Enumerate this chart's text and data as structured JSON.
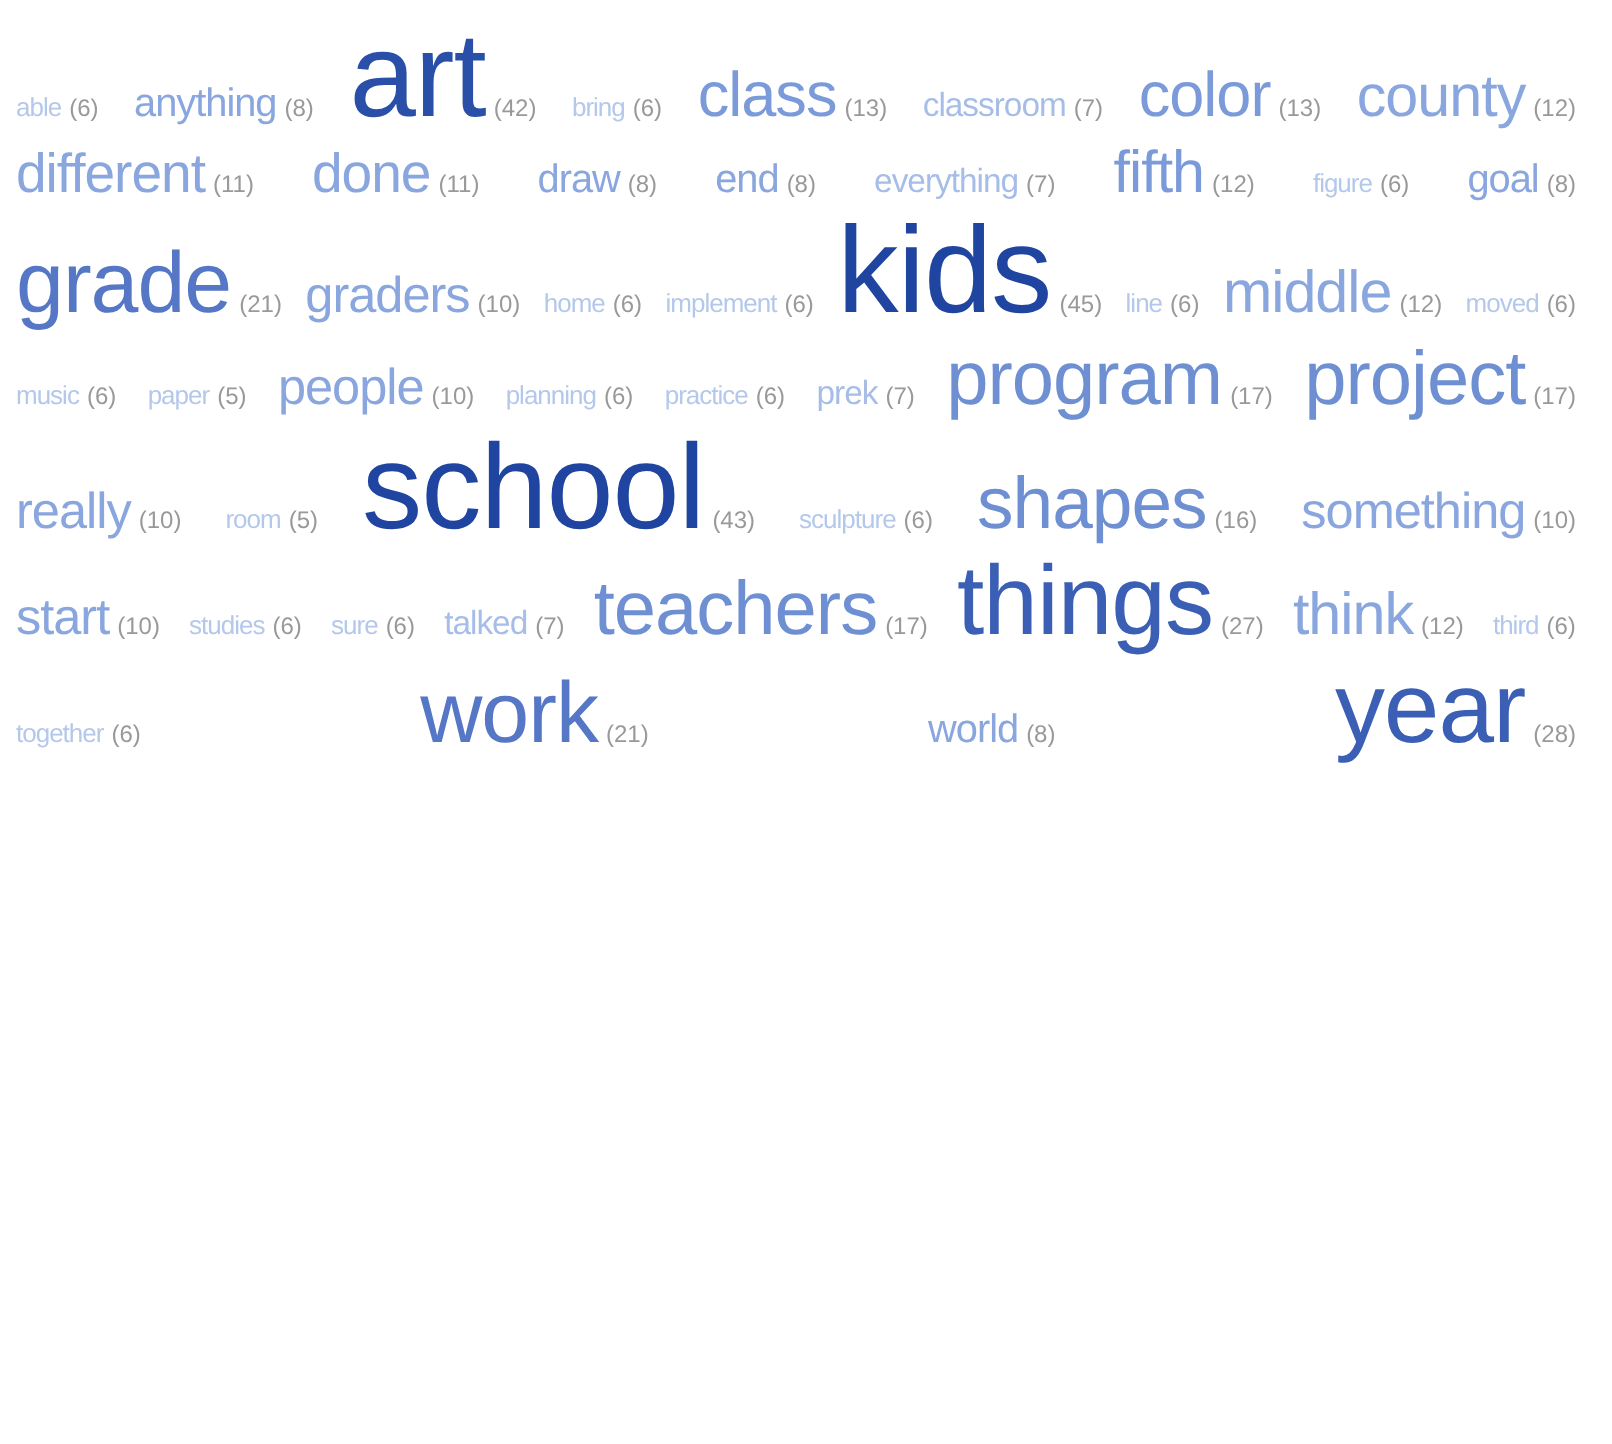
{
  "chart_data": {
    "type": "other",
    "categories": [
      "able",
      "anything",
      "art",
      "bring",
      "class",
      "classroom",
      "color",
      "county",
      "different",
      "done",
      "draw",
      "end",
      "everything",
      "fifth",
      "figure",
      "goal",
      "grade",
      "graders",
      "home",
      "implement",
      "kids",
      "line",
      "middle",
      "moved",
      "music",
      "paper",
      "people",
      "planning",
      "practice",
      "prek",
      "program",
      "project",
      "really",
      "room",
      "school",
      "sculpture",
      "shapes",
      "something",
      "start",
      "studies",
      "sure",
      "talked",
      "teachers",
      "things",
      "think",
      "third",
      "together",
      "work",
      "world",
      "year"
    ],
    "values": [
      6,
      8,
      42,
      6,
      13,
      7,
      13,
      12,
      11,
      11,
      8,
      8,
      7,
      12,
      6,
      8,
      21,
      10,
      6,
      6,
      45,
      6,
      12,
      6,
      6,
      5,
      10,
      6,
      6,
      7,
      17,
      17,
      10,
      5,
      43,
      6,
      16,
      10,
      10,
      6,
      6,
      7,
      17,
      27,
      12,
      6,
      6,
      21,
      8,
      28
    ],
    "colors": [
      "#b4c8ec",
      "#8aa6df",
      "#2a4fa8",
      "#b4c8ec",
      "#7a9ad9",
      "#a6bde8",
      "#7a9ad9",
      "#8aa6df",
      "#8aa6df",
      "#8aa6df",
      "#8aa6df",
      "#8aa6df",
      "#a6bde8",
      "#7a9ad9",
      "#b4c8ec",
      "#8aa6df",
      "#5577c6",
      "#8aa6df",
      "#b4c8ec",
      "#b4c8ec",
      "#1f45a0",
      "#b4c8ec",
      "#8aa6df",
      "#b4c8ec",
      "#b4c8ec",
      "#b4c8ec",
      "#8aa6df",
      "#b4c8ec",
      "#b4c8ec",
      "#a6bde8",
      "#6f8fd3",
      "#6f8fd3",
      "#8aa6df",
      "#b4c8ec",
      "#1f45a0",
      "#b4c8ec",
      "#6f8fd3",
      "#8aa6df",
      "#8aa6df",
      "#b4c8ec",
      "#b4c8ec",
      "#a6bde8",
      "#6f8fd3",
      "#3a5fb5",
      "#8aa6df",
      "#b4c8ec",
      "#b4c8ec",
      "#5577c6",
      "#8aa6df",
      "#3a5fb5"
    ],
    "value_labels": [
      "(6)",
      "(8)",
      "(42)",
      "(6)",
      "(13)",
      "(7)",
      "(13)",
      "(12)",
      "(11)",
      "(11)",
      "(8)",
      "(8)",
      "(7)",
      "(12)",
      "(6)",
      "(8)",
      "(21)",
      "(10)",
      "(6)",
      "(6)",
      "(45)",
      "(6)",
      "(12)",
      "(6)",
      "(6)",
      "(5)",
      "(10)",
      "(6)",
      "(6)",
      "(7)",
      "(17)",
      "(17)",
      "(10)",
      "(5)",
      "(43)",
      "(6)",
      "(16)",
      "(10)",
      "(10)",
      "(6)",
      "(6)",
      "(7)",
      "(17)",
      "(27)",
      "(12)",
      "(6)",
      "(6)",
      "(21)",
      "(8)",
      "(28)"
    ]
  }
}
